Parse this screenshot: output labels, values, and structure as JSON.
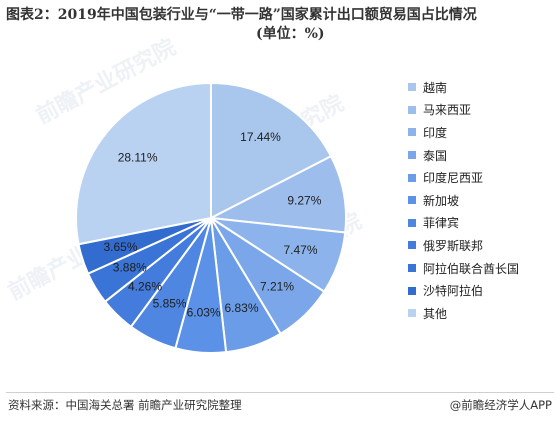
{
  "header": {
    "title_line1": "图表2：2019年中国包装行业与“一带一路”国家累计出口额贸易国占比情况",
    "title_line2": "(单位：%)"
  },
  "chart_data": {
    "type": "pie",
    "start_angle_deg": 90,
    "direction": "clockwise",
    "slices": [
      {
        "label": "越南",
        "value": 17.44,
        "value_label": "17.44%",
        "color": "#a9c6ed"
      },
      {
        "label": "马来西亚",
        "value": 9.27,
        "value_label": "9.27%",
        "color": "#9dbdec"
      },
      {
        "label": "印度",
        "value": 7.47,
        "value_label": "7.47%",
        "color": "#8cb3eb"
      },
      {
        "label": "泰国",
        "value": 7.21,
        "value_label": "7.21%",
        "color": "#7ba7ea"
      },
      {
        "label": "印度尼西亚",
        "value": 6.83,
        "value_label": "6.83%",
        "color": "#6a9ce8"
      },
      {
        "label": "新加坡",
        "value": 6.03,
        "value_label": "6.03%",
        "color": "#5b91e6"
      },
      {
        "label": "菲律宾",
        "value": 5.85,
        "value_label": "5.85%",
        "color": "#4e86e2"
      },
      {
        "label": "俄罗斯联邦",
        "value": 4.26,
        "value_label": "4.26%",
        "color": "#437cdc"
      },
      {
        "label": "阿拉伯联合酋长国",
        "value": 3.88,
        "value_label": "3.88%",
        "color": "#3a74d6"
      },
      {
        "label": "沙特阿拉伯",
        "value": 3.65,
        "value_label": "3.65%",
        "color": "#336ccf"
      },
      {
        "label": "其他",
        "value": 28.11,
        "value_label": "28.11%",
        "color": "#b9d2f2"
      }
    ],
    "legend_position": "right"
  },
  "footer": {
    "source": "资料来源：中国海关总署 前瞻产业研究院整理",
    "brand": "@前瞻经济学人APP"
  },
  "watermark": {
    "text": "前瞻产业研究院"
  }
}
